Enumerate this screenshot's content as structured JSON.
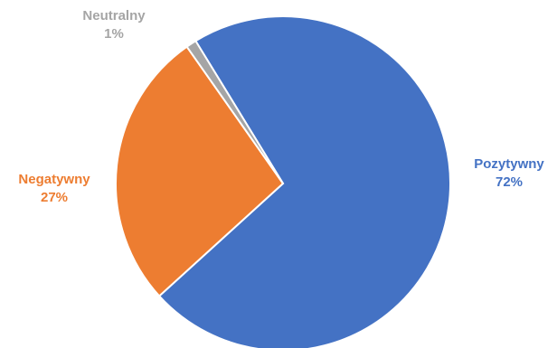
{
  "chart_data": {
    "type": "pie",
    "title": "",
    "slices": [
      {
        "label": "Pozytywny",
        "percent_label": "72%",
        "value": 72,
        "color": "#4472C4",
        "label_color": "#4472C4"
      },
      {
        "label": "Negatywny",
        "percent_label": "27%",
        "value": 27,
        "color": "#ED7D31",
        "label_color": "#ED7D31"
      },
      {
        "label": "Neutralny",
        "percent_label": "1%",
        "value": 1,
        "color": "#A5A5A5",
        "label_color": "#A5A5A5"
      }
    ],
    "legend": "none",
    "data_labels": "outside, category name and percentage"
  }
}
